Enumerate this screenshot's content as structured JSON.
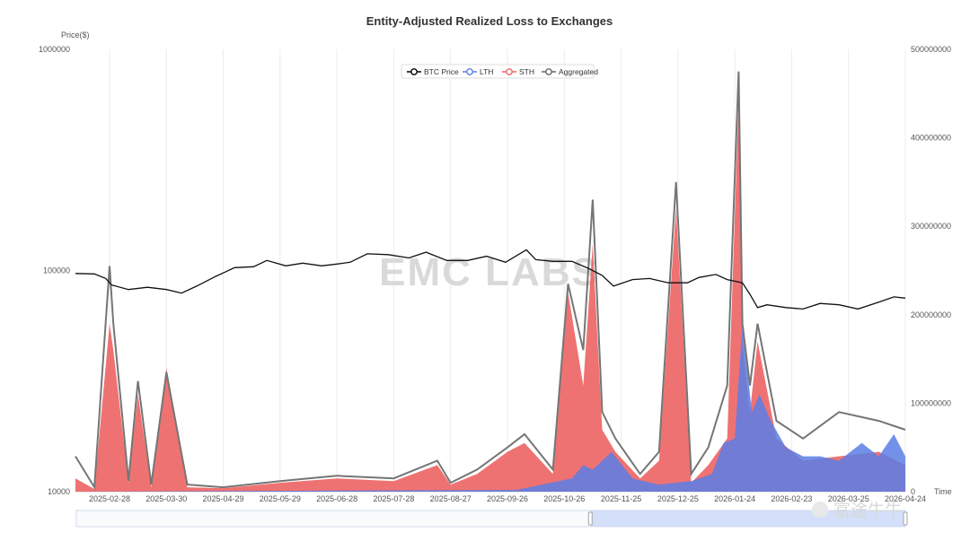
{
  "chart_data": {
    "type": "area",
    "title": "Entity-Adjusted Realized Loss to Exchanges",
    "y_left_label": "Price($)",
    "x_label": "Time",
    "y_left_scale": "log",
    "y_left_ticks": [
      "1000000",
      "100000",
      "10000"
    ],
    "y_left_range": [
      10000,
      1000000
    ],
    "y_right_ticks": [
      "500000000",
      "400000000",
      "300000000",
      "200000000",
      "100000000",
      "0"
    ],
    "y_right_range": [
      0,
      500000000
    ],
    "x_ticks": [
      "2025-02-28",
      "2025-03-30",
      "2025-04-29",
      "2025-05-29",
      "2025-06-28",
      "2025-07-28",
      "2025-08-27",
      "2025-09-26",
      "2025-10-26",
      "2025-11-25",
      "2025-12-25",
      "2026-01-24",
      "2026-02-23",
      "2026-03-25",
      "2026-04-24"
    ],
    "x_range": [
      "2025-02-10",
      "2026-04-24"
    ],
    "grid": "vertical",
    "legend_position": "top-center",
    "legend": [
      {
        "name": "BTC Price",
        "color": "#000000"
      },
      {
        "name": "LTH",
        "color": "#5b7ee5"
      },
      {
        "name": "STH",
        "color": "#ee6666"
      },
      {
        "name": "Aggregated",
        "color": "#666666"
      }
    ],
    "btc_price": {
      "x": [
        "2025-02-10",
        "2025-02-20",
        "2025-02-26",
        "2025-03-01",
        "2025-03-10",
        "2025-03-20",
        "2025-03-30",
        "2025-04-07",
        "2025-04-15",
        "2025-04-25",
        "2025-05-05",
        "2025-05-15",
        "2025-05-22",
        "2025-06-01",
        "2025-06-10",
        "2025-06-20",
        "2025-06-28",
        "2025-07-05",
        "2025-07-14",
        "2025-07-25",
        "2025-08-05",
        "2025-08-14",
        "2025-08-25",
        "2025-09-05",
        "2025-09-15",
        "2025-09-25",
        "2025-10-06",
        "2025-10-11",
        "2025-10-20",
        "2025-10-30",
        "2025-11-08",
        "2025-11-15",
        "2025-11-21",
        "2025-12-01",
        "2025-12-10",
        "2025-12-20",
        "2025-12-30",
        "2026-01-05",
        "2026-01-14",
        "2026-01-20",
        "2026-01-28",
        "2026-02-01",
        "2026-02-05",
        "2026-02-10",
        "2026-02-20",
        "2026-03-01",
        "2026-03-10",
        "2026-03-20",
        "2026-03-30",
        "2026-04-10",
        "2026-04-18",
        "2026-04-24"
      ],
      "y": [
        97000,
        96500,
        92000,
        86000,
        82000,
        84000,
        82000,
        79000,
        85000,
        94000,
        103000,
        104000,
        111000,
        105000,
        108000,
        105000,
        107000,
        109000,
        119000,
        118000,
        114000,
        121000,
        111000,
        111000,
        116000,
        109000,
        124000,
        112000,
        110000,
        110000,
        102000,
        95000,
        85000,
        91000,
        92000,
        88000,
        88000,
        93000,
        96000,
        91000,
        88000,
        78000,
        68000,
        70000,
        68000,
        67000,
        71000,
        70000,
        67000,
        72000,
        76000,
        75000
      ]
    },
    "lth_loss": {
      "x": [
        "2025-02-10",
        "2025-06-01",
        "2025-10-01",
        "2025-10-30",
        "2025-11-05",
        "2025-11-10",
        "2025-11-20",
        "2025-12-01",
        "2025-12-15",
        "2026-01-01",
        "2026-01-12",
        "2026-01-18",
        "2026-01-24",
        "2026-01-28",
        "2026-02-02",
        "2026-02-06",
        "2026-02-12",
        "2026-02-20",
        "2026-03-01",
        "2026-03-10",
        "2026-03-20",
        "2026-04-01",
        "2026-04-10",
        "2026-04-18",
        "2026-04-24"
      ],
      "y": [
        0,
        1000000,
        2000000,
        15000000,
        30000000,
        25000000,
        45000000,
        15000000,
        8000000,
        12000000,
        20000000,
        55000000,
        60000000,
        190000000,
        90000000,
        110000000,
        80000000,
        50000000,
        40000000,
        40000000,
        35000000,
        55000000,
        40000000,
        65000000,
        40000000
      ]
    },
    "sth_loss": {
      "x": [
        "2025-02-10",
        "2025-02-20",
        "2025-02-28",
        "2025-03-02",
        "2025-03-10",
        "2025-03-15",
        "2025-03-22",
        "2025-03-30",
        "2025-04-10",
        "2025-04-29",
        "2025-05-29",
        "2025-06-28",
        "2025-07-28",
        "2025-08-20",
        "2025-08-27",
        "2025-09-10",
        "2025-09-26",
        "2025-10-05",
        "2025-10-20",
        "2025-10-28",
        "2025-11-05",
        "2025-11-10",
        "2025-11-15",
        "2025-11-22",
        "2025-12-05",
        "2025-12-15",
        "2025-12-24",
        "2026-01-01",
        "2026-01-10",
        "2026-01-20",
        "2026-01-26",
        "2026-01-28",
        "2026-02-01",
        "2026-02-05",
        "2026-02-15",
        "2026-03-01",
        "2026-03-20",
        "2026-04-10",
        "2026-04-24"
      ],
      "y": [
        15000000,
        3000000,
        190000000,
        160000000,
        10000000,
        110000000,
        5000000,
        140000000,
        5000000,
        4000000,
        10000000,
        15000000,
        12000000,
        30000000,
        8000000,
        20000000,
        45000000,
        55000000,
        20000000,
        225000000,
        120000000,
        280000000,
        70000000,
        45000000,
        15000000,
        35000000,
        320000000,
        10000000,
        30000000,
        60000000,
        440000000,
        170000000,
        90000000,
        170000000,
        60000000,
        35000000,
        40000000,
        45000000,
        30000000
      ]
    },
    "aggregated_loss": {
      "x": [
        "2025-02-10",
        "2025-02-20",
        "2025-02-28",
        "2025-03-02",
        "2025-03-10",
        "2025-03-15",
        "2025-03-22",
        "2025-03-30",
        "2025-04-10",
        "2025-04-29",
        "2025-05-29",
        "2025-06-28",
        "2025-07-28",
        "2025-08-20",
        "2025-08-27",
        "2025-09-10",
        "2025-09-26",
        "2025-10-05",
        "2025-10-20",
        "2025-10-28",
        "2025-11-05",
        "2025-11-10",
        "2025-11-15",
        "2025-11-22",
        "2025-12-05",
        "2025-12-15",
        "2025-12-24",
        "2026-01-01",
        "2026-01-10",
        "2026-01-20",
        "2026-01-26",
        "2026-01-28",
        "2026-02-01",
        "2026-02-05",
        "2026-02-15",
        "2026-03-01",
        "2026-03-20",
        "2026-04-10",
        "2026-04-24"
      ],
      "y": [
        40000000,
        5000000,
        255000000,
        190000000,
        12000000,
        125000000,
        8000000,
        135000000,
        8000000,
        5000000,
        12000000,
        18000000,
        15000000,
        35000000,
        10000000,
        25000000,
        50000000,
        65000000,
        25000000,
        235000000,
        160000000,
        330000000,
        90000000,
        60000000,
        20000000,
        45000000,
        350000000,
        20000000,
        50000000,
        120000000,
        475000000,
        190000000,
        120000000,
        190000000,
        80000000,
        60000000,
        90000000,
        80000000,
        70000000
      ]
    }
  },
  "watermark": "EMC LABS",
  "brand_text": "富途牛牛",
  "range_selector": {
    "start": 0.62,
    "end": 1.0
  }
}
